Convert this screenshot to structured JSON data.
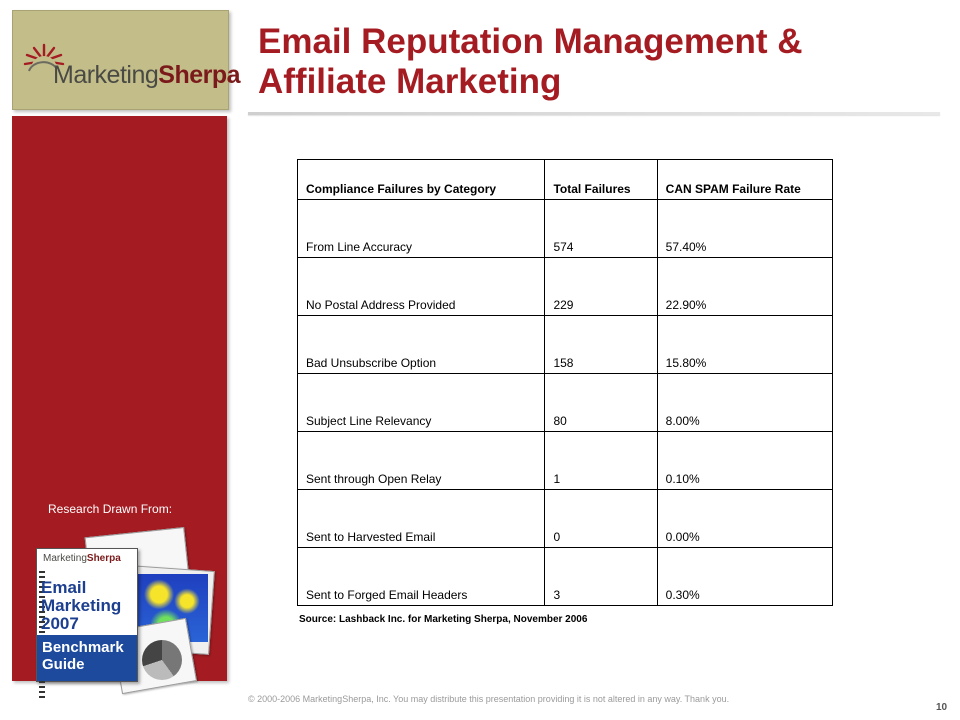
{
  "logo": {
    "name_light": "Marketing",
    "name_bold": "Sherpa"
  },
  "sidebar": {
    "research_label": "Research Drawn From:",
    "guide": {
      "logo_light": "Marketing",
      "logo_bold": "Sherpa",
      "title": "Email Marketing 2007",
      "subtitle": "Benchmark Guide"
    }
  },
  "slide": {
    "title": "Email Reputation Management & Affiliate Marketing",
    "source": "Source: Lashback Inc. for Marketing Sherpa, November 2006",
    "footer": "© 2000-2006 MarketingSherpa, Inc. You may distribute this presentation providing it is not altered in any way. Thank you.",
    "page_number": "10"
  },
  "table": {
    "headers": [
      "Compliance Failures by Category",
      "Total Failures",
      "CAN SPAM Failure Rate"
    ],
    "rows": [
      [
        "From Line Accuracy",
        "574",
        "57.40%"
      ],
      [
        "No Postal Address Provided",
        "229",
        "22.90%"
      ],
      [
        "Bad Unsubscribe Option",
        "158",
        "15.80%"
      ],
      [
        "Subject Line Relevancy",
        "80",
        "8.00%"
      ],
      [
        "Sent through Open Relay",
        "1",
        "0.10%"
      ],
      [
        "Sent to Harvested Email",
        "0",
        "0.00%"
      ],
      [
        "Sent to Forged Email Headers",
        "3",
        "0.30%"
      ]
    ]
  },
  "colors": {
    "brand_red": "#a41c22",
    "logo_background": "#c3bd8a",
    "guide_blue": "#1d4a9c"
  }
}
